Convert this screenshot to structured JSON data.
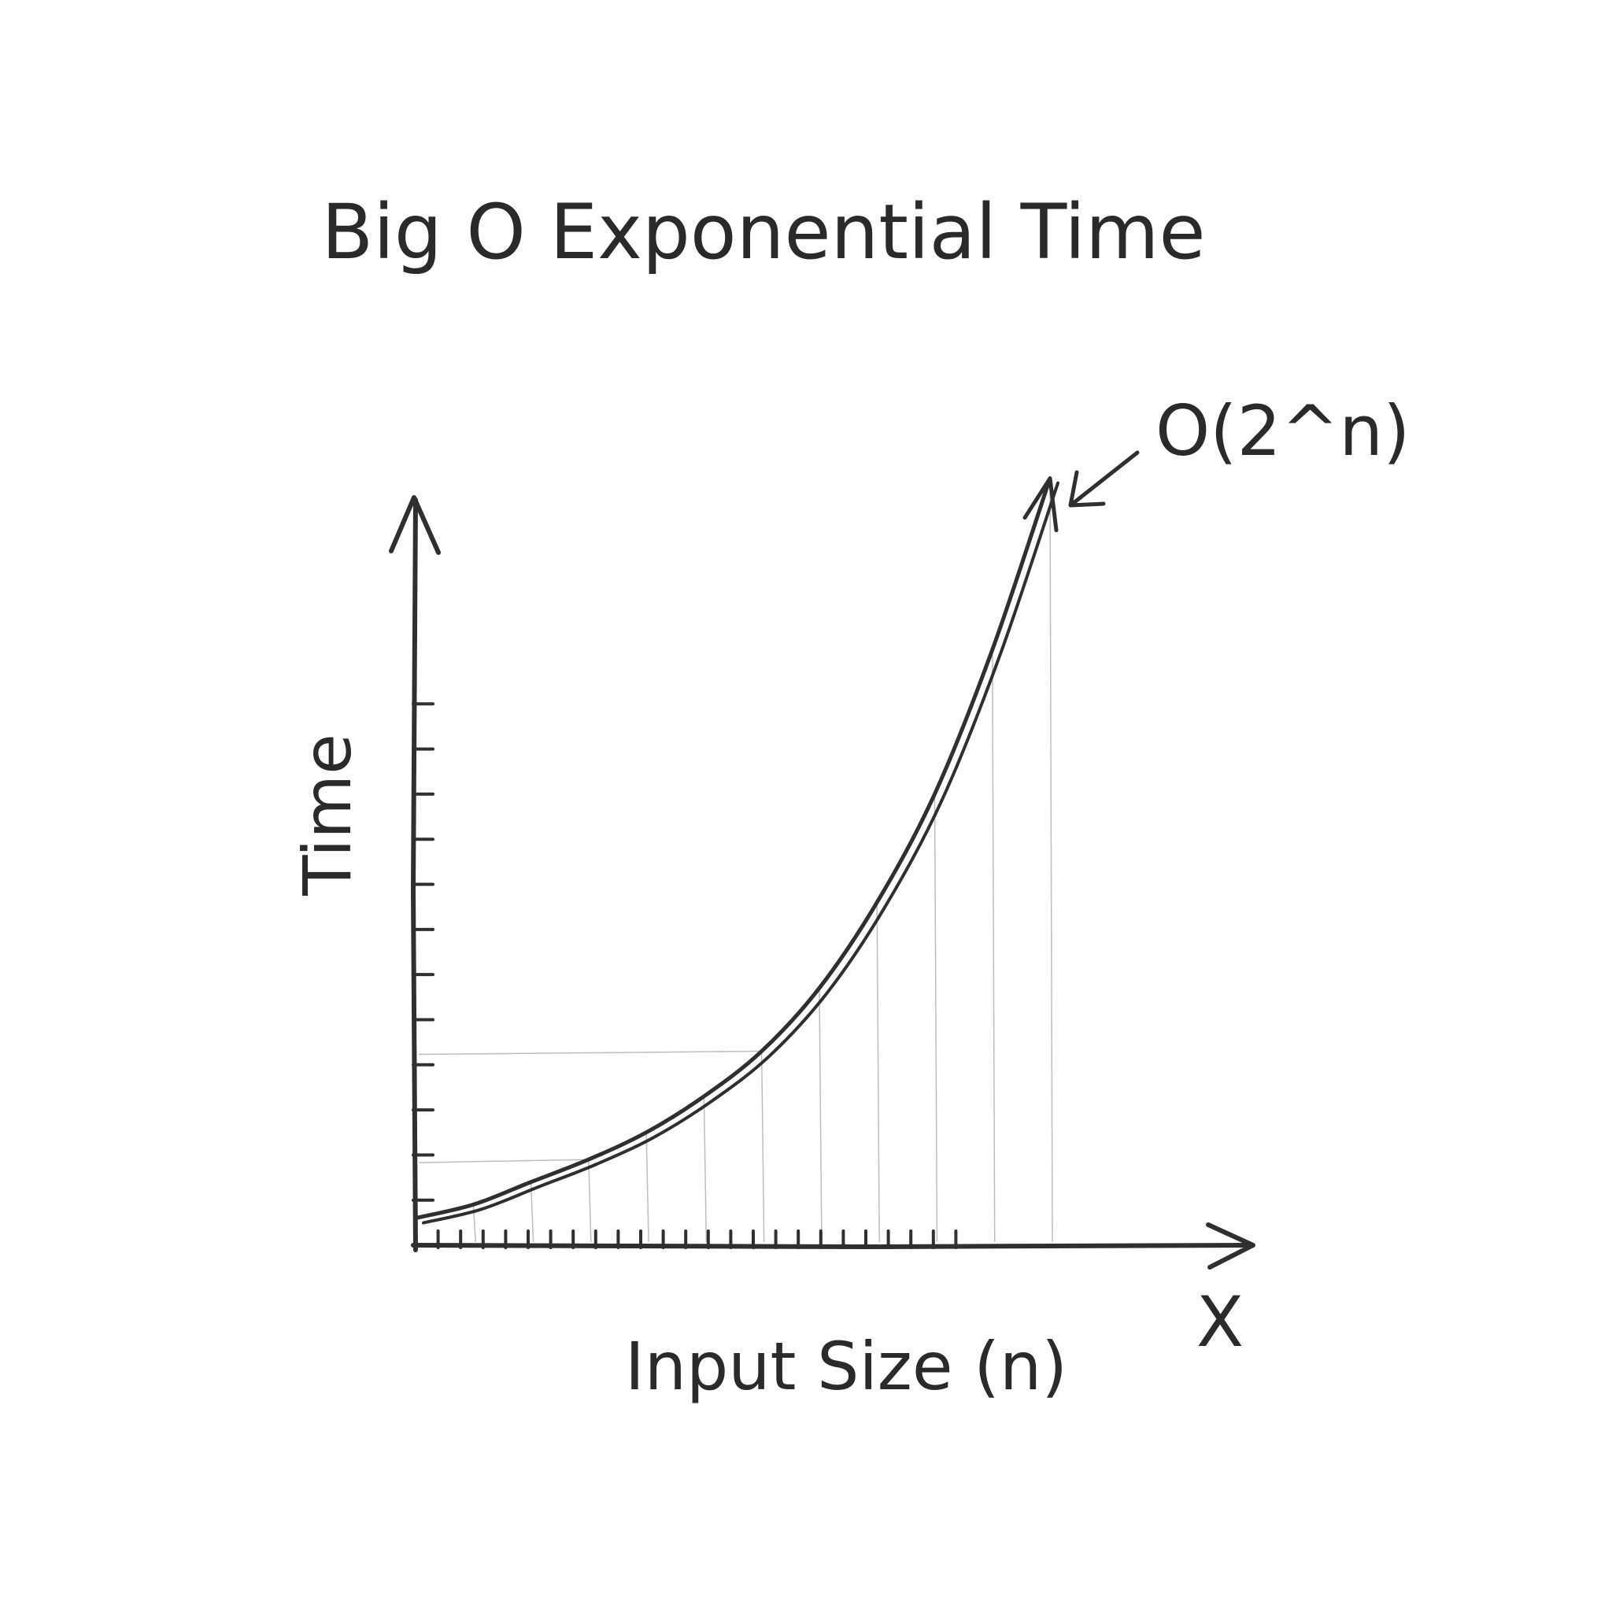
{
  "chart_data": {
    "type": "line",
    "title": "Big O Exponential Time",
    "xlabel": "Input Size (n)",
    "ylabel": "Time",
    "x_axis_end_label": "X",
    "annotation": "O(2^n)",
    "grid": "light vertical drop lines under curve",
    "legend": "none",
    "xlim": [
      0,
      12
    ],
    "ylim": [
      0,
      16
    ],
    "series": [
      {
        "x": [
          0,
          1,
          2,
          3,
          4,
          5,
          6,
          7,
          8,
          9,
          10,
          11
        ],
        "values": [
          0.6,
          0.9,
          1.4,
          1.9,
          2.5,
          3.3,
          4.3,
          5.7,
          7.6,
          10.0,
          13.2,
          17.0
        ]
      }
    ],
    "colors": {
      "ink": "#2f2f2f",
      "guide": "#bdbdbd",
      "background": "#ffffff"
    }
  }
}
